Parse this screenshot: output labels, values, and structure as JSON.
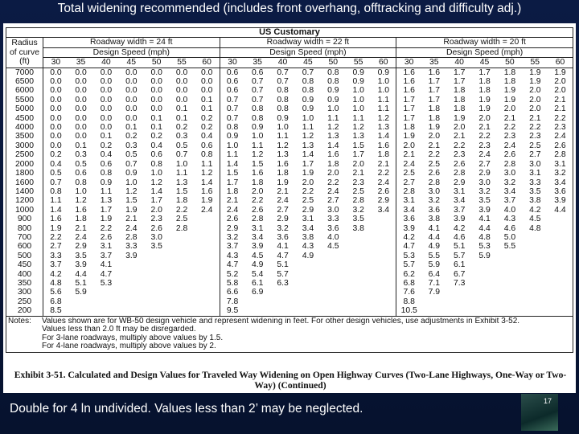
{
  "slide": {
    "title": "Total widening recommended (includes front overhang, offtracking and difficulty adj.)",
    "table": {
      "heading": "US Customary",
      "radius_header": [
        "Radius",
        "of curve",
        "(ft)"
      ],
      "groups": [
        {
          "width": "Roadway width = 24 ft",
          "speed": "Design Speed (mph)",
          "speeds": [
            "30",
            "35",
            "40",
            "45",
            "50",
            "55",
            "60"
          ]
        },
        {
          "width": "Roadway width = 22 ft",
          "speed": "Design Speed (mph)",
          "speeds": [
            "30",
            "35",
            "40",
            "45",
            "50",
            "55",
            "60"
          ]
        },
        {
          "width": "Roadway width = 20 ft",
          "speed": "Design Speed (mph)",
          "speeds": [
            "30",
            "35",
            "40",
            "45",
            "50",
            "55",
            "60"
          ]
        }
      ],
      "rows": [
        {
          "r": "7000",
          "v": [
            [
              "0.0",
              "0.0",
              "0.0",
              "0.0",
              "0.0",
              "0.0",
              "0.0"
            ],
            [
              "0.6",
              "0.6",
              "0.7",
              "0.7",
              "0.8",
              "0.9",
              "0.9"
            ],
            [
              "1.6",
              "1.6",
              "1.7",
              "1.7",
              "1.8",
              "1.9",
              "1.9"
            ]
          ]
        },
        {
          "r": "6500",
          "v": [
            [
              "0.0",
              "0.0",
              "0.0",
              "0.0",
              "0.0",
              "0.0",
              "0.0"
            ],
            [
              "0.6",
              "0.7",
              "0.7",
              "0.8",
              "0.8",
              "0.9",
              "1.0"
            ],
            [
              "1.6",
              "1.7",
              "1.7",
              "1.8",
              "1.8",
              "1.9",
              "2.0"
            ]
          ]
        },
        {
          "r": "6000",
          "v": [
            [
              "0.0",
              "0.0",
              "0.0",
              "0.0",
              "0.0",
              "0.0",
              "0.0"
            ],
            [
              "0.6",
              "0.7",
              "0.8",
              "0.8",
              "0.9",
              "1.0",
              "1.0"
            ],
            [
              "1.6",
              "1.7",
              "1.8",
              "1.8",
              "1.9",
              "2.0",
              "2.0"
            ]
          ]
        },
        {
          "r": "5500",
          "v": [
            [
              "0.0",
              "0.0",
              "0.0",
              "0.0",
              "0.0",
              "0.0",
              "0.1"
            ],
            [
              "0.7",
              "0.7",
              "0.8",
              "0.9",
              "0.9",
              "1.0",
              "1.1"
            ],
            [
              "1.7",
              "1.7",
              "1.8",
              "1.9",
              "1.9",
              "2.0",
              "2.1"
            ]
          ]
        },
        {
          "r": "5000",
          "v": [
            [
              "0.0",
              "0.0",
              "0.0",
              "0.0",
              "0.0",
              "0.1",
              "0.1"
            ],
            [
              "0.7",
              "0.8",
              "0.8",
              "0.9",
              "1.0",
              "1.0",
              "1.1"
            ],
            [
              "1.7",
              "1.8",
              "1.8",
              "1.9",
              "2.0",
              "2.0",
              "2.1"
            ]
          ]
        },
        {
          "r": "4500",
          "v": [
            [
              "0.0",
              "0.0",
              "0.0",
              "0.0",
              "0.1",
              "0.1",
              "0.2"
            ],
            [
              "0.7",
              "0.8",
              "0.9",
              "1.0",
              "1.1",
              "1.1",
              "1.2"
            ],
            [
              "1.7",
              "1.8",
              "1.9",
              "2.0",
              "2.1",
              "2.1",
              "2.2"
            ]
          ]
        },
        {
          "r": "4000",
          "v": [
            [
              "0.0",
              "0.0",
              "0.0",
              "0.1",
              "0.1",
              "0.2",
              "0.2"
            ],
            [
              "0.8",
              "0.9",
              "1.0",
              "1.1",
              "1.2",
              "1.2",
              "1.3"
            ],
            [
              "1.8",
              "1.9",
              "2.0",
              "2.1",
              "2.2",
              "2.2",
              "2.3"
            ]
          ]
        },
        {
          "r": "3500",
          "v": [
            [
              "0.0",
              "0.0",
              "0.1",
              "0.2",
              "0.2",
              "0.3",
              "0.4"
            ],
            [
              "0.9",
              "1.0",
              "1.1",
              "1.2",
              "1.3",
              "1.3",
              "1.4"
            ],
            [
              "1.9",
              "2.0",
              "2.1",
              "2.2",
              "2.3",
              "2.3",
              "2.4"
            ]
          ]
        },
        {
          "r": "3000",
          "v": [
            [
              "0.0",
              "0.1",
              "0.2",
              "0.3",
              "0.4",
              "0.5",
              "0.6"
            ],
            [
              "1.0",
              "1.1",
              "1.2",
              "1.3",
              "1.4",
              "1.5",
              "1.6"
            ],
            [
              "2.0",
              "2.1",
              "2.2",
              "2.3",
              "2.4",
              "2.5",
              "2.6"
            ]
          ]
        },
        {
          "r": "2500",
          "v": [
            [
              "0.2",
              "0.3",
              "0.4",
              "0.5",
              "0.6",
              "0.7",
              "0.8"
            ],
            [
              "1.1",
              "1.2",
              "1.3",
              "1.4",
              "1.6",
              "1.7",
              "1.8"
            ],
            [
              "2.1",
              "2.2",
              "2.3",
              "2.4",
              "2.6",
              "2.7",
              "2.8"
            ]
          ]
        },
        {
          "r": "2000",
          "v": [
            [
              "0.4",
              "0.5",
              "0.6",
              "0.7",
              "0.8",
              "1.0",
              "1.1"
            ],
            [
              "1.4",
              "1.5",
              "1.6",
              "1.7",
              "1.8",
              "2.0",
              "2.1"
            ],
            [
              "2.4",
              "2.5",
              "2.6",
              "2.7",
              "2.8",
              "3.0",
              "3.1"
            ]
          ]
        },
        {
          "r": "1800",
          "v": [
            [
              "0.5",
              "0.6",
              "0.8",
              "0.9",
              "1.0",
              "1.1",
              "1.2"
            ],
            [
              "1.5",
              "1.6",
              "1.8",
              "1.9",
              "2.0",
              "2.1",
              "2.2"
            ],
            [
              "2.5",
              "2.6",
              "2.8",
              "2.9",
              "3.0",
              "3.1",
              "3.2"
            ]
          ]
        },
        {
          "r": "1600",
          "v": [
            [
              "0.7",
              "0.8",
              "0.9",
              "1.0",
              "1.2",
              "1.3",
              "1.4"
            ],
            [
              "1.7",
              "1.8",
              "1.9",
              "2.0",
              "2.2",
              "2.3",
              "2.4"
            ],
            [
              "2.7",
              "2.8",
              "2.9",
              "3.0",
              "3.2",
              "3.3",
              "3.4"
            ]
          ]
        },
        {
          "r": "1400",
          "v": [
            [
              "0.8",
              "1.0",
              "1.1",
              "1.2",
              "1.4",
              "1.5",
              "1.6"
            ],
            [
              "1.8",
              "2.0",
              "2.1",
              "2.2",
              "2.4",
              "2.5",
              "2.6"
            ],
            [
              "2.8",
              "3.0",
              "3.1",
              "3.2",
              "3.4",
              "3.5",
              "3.6"
            ]
          ]
        },
        {
          "r": "1200",
          "v": [
            [
              "1.1",
              "1.2",
              "1.3",
              "1.5",
              "1.7",
              "1.8",
              "1.9"
            ],
            [
              "2.1",
              "2.2",
              "2.4",
              "2.5",
              "2.7",
              "2.8",
              "2.9"
            ],
            [
              "3.1",
              "3.2",
              "3.4",
              "3.5",
              "3.7",
              "3.8",
              "3.9"
            ]
          ]
        },
        {
          "r": "1000",
          "v": [
            [
              "1.4",
              "1.6",
              "1.7",
              "1.9",
              "2.0",
              "2.2",
              "2.4"
            ],
            [
              "2.4",
              "2.6",
              "2.7",
              "2.9",
              "3.0",
              "3.2",
              "3.4"
            ],
            [
              "3.4",
              "3.6",
              "3.7",
              "3.9",
              "4.0",
              "4.2",
              "4.4"
            ]
          ]
        },
        {
          "r": "900",
          "v": [
            [
              "1.6",
              "1.8",
              "1.9",
              "2.1",
              "2.3",
              "2.5"
            ],
            [
              "2.6",
              "2.8",
              "2.9",
              "3.1",
              "3.3",
              "3.5"
            ],
            [
              "3.6",
              "3.8",
              "3.9",
              "4.1",
              "4.3",
              "4.5"
            ]
          ]
        },
        {
          "r": "800",
          "v": [
            [
              "1.9",
              "2.1",
              "2.2",
              "2.4",
              "2.6",
              "2.8"
            ],
            [
              "2.9",
              "3.1",
              "3.2",
              "3.4",
              "3.6",
              "3.8"
            ],
            [
              "3.9",
              "4.1",
              "4.2",
              "4.4",
              "4.6",
              "4.8"
            ]
          ]
        },
        {
          "r": "700",
          "v": [
            [
              "2.2",
              "2.4",
              "2.6",
              "2.8",
              "3.0"
            ],
            [
              "3.2",
              "3.4",
              "3.6",
              "3.8",
              "4.0"
            ],
            [
              "4.2",
              "4.4",
              "4.6",
              "4.8",
              "5.0"
            ]
          ]
        },
        {
          "r": "600",
          "v": [
            [
              "2.7",
              "2.9",
              "3.1",
              "3.3",
              "3.5"
            ],
            [
              "3.7",
              "3.9",
              "4.1",
              "4.3",
              "4.5"
            ],
            [
              "4.7",
              "4.9",
              "5.1",
              "5.3",
              "5.5"
            ]
          ]
        },
        {
          "r": "500",
          "v": [
            [
              "3.3",
              "3.5",
              "3.7",
              "3.9"
            ],
            [
              "4.3",
              "4.5",
              "4.7",
              "4.9"
            ],
            [
              "5.3",
              "5.5",
              "5.7",
              "5.9"
            ]
          ]
        },
        {
          "r": "450",
          "v": [
            [
              "3.7",
              "3.9",
              "4.1"
            ],
            [
              "4.7",
              "4.9",
              "5.1"
            ],
            [
              "5.7",
              "5.9",
              "6.1"
            ]
          ]
        },
        {
          "r": "400",
          "v": [
            [
              "4.2",
              "4.4",
              "4.7"
            ],
            [
              "5.2",
              "5.4",
              "5.7"
            ],
            [
              "6.2",
              "6.4",
              "6.7"
            ]
          ]
        },
        {
          "r": "350",
          "v": [
            [
              "4.8",
              "5.1",
              "5.3"
            ],
            [
              "5.8",
              "6.1",
              "6.3"
            ],
            [
              "6.8",
              "7.1",
              "7.3"
            ]
          ]
        },
        {
          "r": "300",
          "v": [
            [
              "5.6",
              "5.9"
            ],
            [
              "6.6",
              "6.9"
            ],
            [
              "7.6",
              "7.9"
            ]
          ]
        },
        {
          "r": "250",
          "v": [
            [
              "6.8"
            ],
            [
              "7.8"
            ],
            [
              "8.8"
            ]
          ]
        },
        {
          "r": "200",
          "v": [
            [
              "8.5"
            ],
            [
              "9.5"
            ],
            [
              "10.5"
            ]
          ]
        }
      ],
      "notes_label": "Notes:",
      "notes": [
        "Values shown are for WB-50 design vehicle and represent widening in feet.  For other design vehicles, use adjustments in Exhibit 3-52.",
        "Values less than 2.0 ft may be disregarded.",
        "For 3-lane roadways, multiply above values by 1.5.",
        "For 4-lane roadways, multiply above values by 2."
      ]
    },
    "caption": "Exhibit 3-51.  Calculated and Design Values for Traveled Way Widening on Open Highway Curves (Two-Lane Highways, One-Way or Two-Way) (Continued)",
    "footer": "Double for 4 ln undivided.  Values less than 2’ may be neglected.",
    "page": "17"
  }
}
